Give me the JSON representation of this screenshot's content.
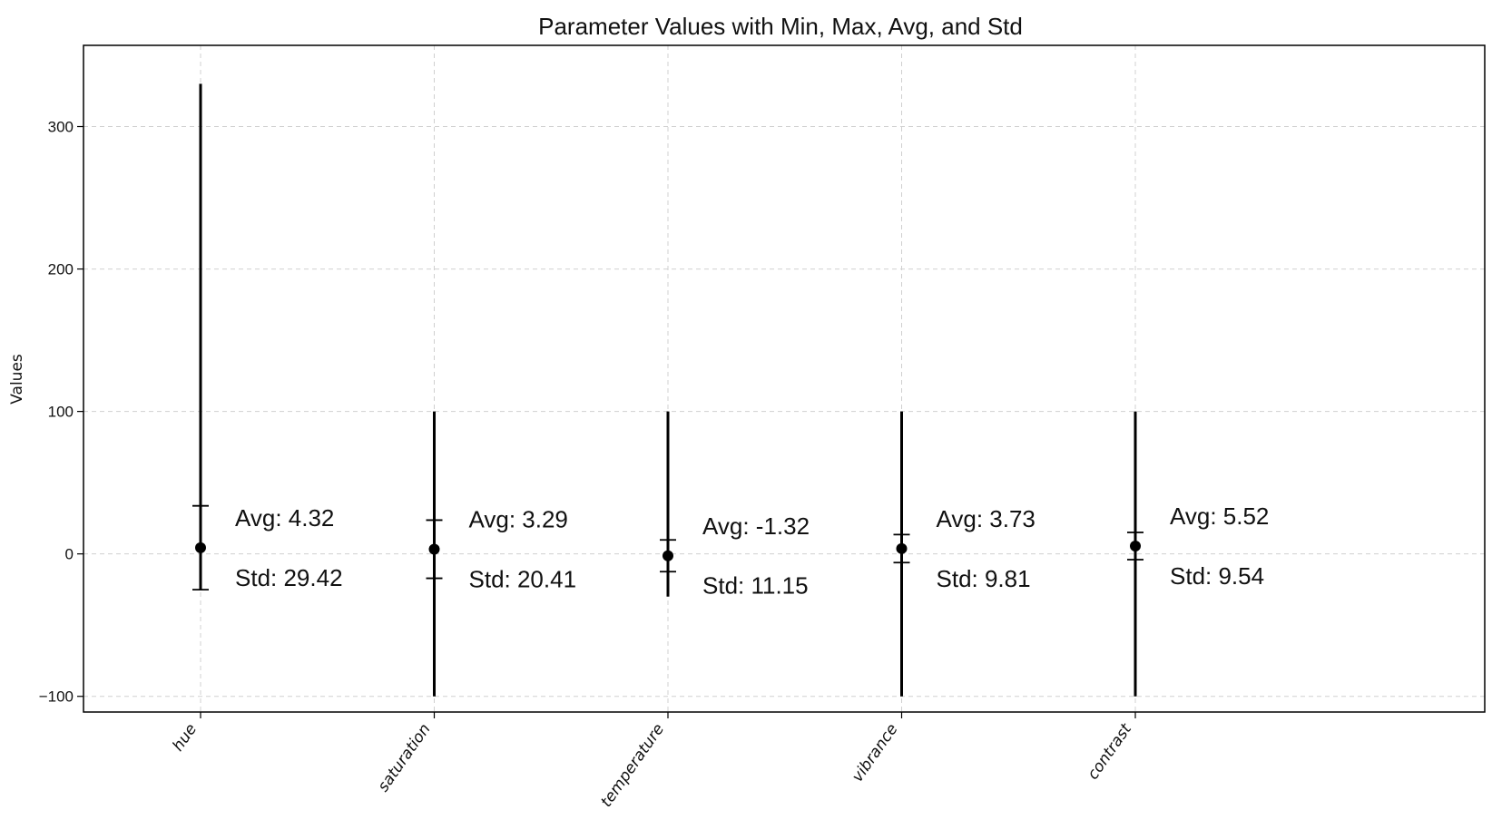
{
  "chart_data": {
    "type": "errorbar",
    "title": "Parameter Values with Min, Max, Avg, and Std",
    "xlabel": "",
    "ylabel": "Values",
    "ylim": [
      -111,
      357
    ],
    "yticks": [
      -100,
      0,
      100,
      200,
      300
    ],
    "ytick_labels": [
      "−100",
      "0",
      "100",
      "200",
      "300"
    ],
    "grid": true,
    "legend": "none",
    "avg_prefix": "Avg: ",
    "std_prefix": "Std: ",
    "colors": {
      "marker": "#000000",
      "grid": "#d0d0d0",
      "axes": "#000000"
    },
    "categories": [
      "hue",
      "saturation",
      "temperature",
      "vibrance",
      "contrast"
    ],
    "min": [
      -25,
      -100,
      -30,
      -100,
      -100
    ],
    "max": [
      330,
      100,
      100,
      100,
      100
    ],
    "avg": [
      4.32,
      3.29,
      -1.32,
      3.73,
      5.52
    ],
    "std": [
      29.42,
      20.41,
      11.15,
      9.81,
      9.54
    ],
    "avg_labels": [
      "4.32",
      "3.29",
      "-1.32",
      "3.73",
      "5.52"
    ],
    "std_labels": [
      "29.42",
      "20.41",
      "11.15",
      "9.81",
      "9.54"
    ]
  }
}
